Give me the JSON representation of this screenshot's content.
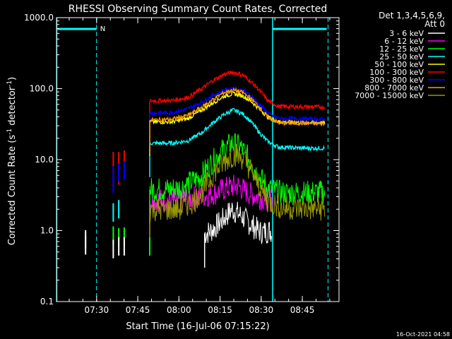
{
  "chart_data": {
    "type": "line",
    "title": "RHESSI Observing Summary Count Rates, Corrected",
    "xlabel": "Start Time (16-Jul-06 07:15:22)",
    "ylabel_main": "Corrected Count Rate (s",
    "ylabel_sup1": "-1",
    "ylabel_mid": " detector",
    "ylabel_sup2": "-1",
    "ylabel_end": ")",
    "yscale": "log",
    "ylim": [
      0.1,
      1000
    ],
    "xlim_minutes": [
      0,
      103
    ],
    "x_ticks": [
      {
        "label": "07:30",
        "t": 14.63
      },
      {
        "label": "07:45",
        "t": 29.63
      },
      {
        "label": "08:00",
        "t": 44.63
      },
      {
        "label": "08:15",
        "t": 59.63
      },
      {
        "label": "08:30",
        "t": 74.63
      },
      {
        "label": "08:45",
        "t": 89.63
      }
    ],
    "y_ticks": [
      {
        "label": "0.1",
        "v": 0.1
      },
      {
        "label": "1.0",
        "v": 1
      },
      {
        "label": "10.0",
        "v": 10
      },
      {
        "label": "100.0",
        "v": 100
      },
      {
        "label": "1000.0",
        "v": 1000
      }
    ],
    "legend_header": [
      "Det 1,3,4,5,6,9,",
      "Att 0"
    ],
    "footer_timestamp": "16-Oct-2021 04:58",
    "night_marker": "N",
    "markers": {
      "color": "#00ffff",
      "dashed_t": [
        14.6,
        99.0
      ],
      "solid_t": [
        0.1,
        78.8
      ],
      "night_bars": [
        [
          0.4,
          14.6
        ],
        [
          78.8,
          98.5
        ]
      ]
    },
    "series": [
      {
        "name": "3 - 6 keV",
        "color": "#ffffff",
        "points": [
          [
            54.0,
            0.9
          ],
          [
            56.5,
            1.0
          ],
          [
            60.5,
            1.4
          ],
          [
            64.0,
            2.0
          ],
          [
            67.5,
            1.6
          ],
          [
            71.0,
            1.2
          ],
          [
            74.5,
            0.95
          ],
          [
            78.5,
            1.0
          ]
        ]
      },
      {
        "name": "6 - 12 keV",
        "color": "#ff00ff",
        "points": [
          [
            34.0,
            2.6
          ],
          [
            36.0,
            2.7
          ],
          [
            45.0,
            2.7
          ],
          [
            52.0,
            3.0
          ],
          [
            58.0,
            3.4
          ],
          [
            63.0,
            4.1
          ],
          [
            66.0,
            4.3
          ],
          [
            70.0,
            3.4
          ],
          [
            74.0,
            2.9
          ],
          [
            79.0,
            2.7
          ]
        ]
      },
      {
        "name": "12 - 25 keV",
        "color": "#00ff00",
        "points": [
          [
            34.0,
            3.8
          ],
          [
            40.0,
            3.8
          ],
          [
            45.0,
            4.0
          ],
          [
            52.0,
            5.5
          ],
          [
            56.0,
            8.5
          ],
          [
            60.0,
            13.0
          ],
          [
            64.0,
            17.0
          ],
          [
            67.0,
            15.0
          ],
          [
            70.0,
            10.5
          ],
          [
            73.0,
            6.5
          ],
          [
            77.0,
            4.0
          ],
          [
            82.0,
            3.4
          ],
          [
            90.0,
            3.4
          ],
          [
            98.0,
            3.5
          ]
        ]
      },
      {
        "name": "25 - 50 keV",
        "color": "#00ffff",
        "points": [
          [
            34.0,
            17.0
          ],
          [
            42.0,
            17.0
          ],
          [
            48.0,
            18.5
          ],
          [
            53.0,
            24.0
          ],
          [
            57.0,
            33.0
          ],
          [
            61.0,
            43.0
          ],
          [
            64.5,
            50.0
          ],
          [
            68.0,
            44.0
          ],
          [
            71.0,
            34.0
          ],
          [
            74.0,
            24.0
          ],
          [
            77.0,
            18.0
          ],
          [
            81.0,
            15.0
          ],
          [
            90.0,
            14.5
          ],
          [
            98.0,
            14.5
          ]
        ]
      },
      {
        "name": "50 - 100 keV",
        "color": "#ffff00",
        "points": [
          [
            34.0,
            34.0
          ],
          [
            42.0,
            34.0
          ],
          [
            48.0,
            38.0
          ],
          [
            53.0,
            50.0
          ],
          [
            57.0,
            63.0
          ],
          [
            61.0,
            78.0
          ],
          [
            64.5,
            85.0
          ],
          [
            68.0,
            79.0
          ],
          [
            71.0,
            66.0
          ],
          [
            74.0,
            52.0
          ],
          [
            77.0,
            40.0
          ],
          [
            81.0,
            34.0
          ],
          [
            98.0,
            33.0
          ]
        ]
      },
      {
        "name": "100 - 300 keV",
        "color": "#ff0000",
        "points": [
          [
            34.0,
            67.0
          ],
          [
            42.0,
            68.0
          ],
          [
            48.0,
            75.0
          ],
          [
            53.0,
            100.0
          ],
          [
            57.0,
            130.0
          ],
          [
            61.0,
            158.0
          ],
          [
            64.5,
            170.0
          ],
          [
            68.0,
            155.0
          ],
          [
            71.0,
            125.0
          ],
          [
            74.0,
            95.0
          ],
          [
            77.0,
            68.0
          ],
          [
            81.0,
            56.0
          ],
          [
            98.0,
            55.0
          ]
        ]
      },
      {
        "name": "300 - 800 keV",
        "color": "#0000ff",
        "points": [
          [
            34.0,
            45.0
          ],
          [
            42.0,
            46.0
          ],
          [
            48.0,
            52.0
          ],
          [
            53.0,
            65.0
          ],
          [
            57.0,
            80.0
          ],
          [
            61.0,
            95.0
          ],
          [
            64.5,
            100.0
          ],
          [
            68.0,
            94.0
          ],
          [
            71.0,
            78.0
          ],
          [
            74.0,
            60.0
          ],
          [
            77.0,
            45.0
          ],
          [
            81.0,
            38.0
          ],
          [
            98.0,
            37.0
          ]
        ]
      },
      {
        "name": "800 - 7000 keV",
        "color": "#ff9900",
        "points": [
          [
            34.0,
            36.0
          ],
          [
            42.0,
            37.0
          ],
          [
            48.0,
            42.0
          ],
          [
            53.0,
            55.0
          ],
          [
            57.0,
            70.0
          ],
          [
            61.0,
            88.0
          ],
          [
            64.5,
            95.0
          ],
          [
            68.0,
            88.0
          ],
          [
            71.0,
            72.0
          ],
          [
            74.0,
            55.0
          ],
          [
            77.0,
            40.0
          ],
          [
            81.0,
            33.0
          ],
          [
            98.0,
            32.0
          ]
        ]
      },
      {
        "name": "7000 - 15000 keV",
        "color": "#999900",
        "points": [
          [
            34.0,
            2.0
          ],
          [
            40.0,
            2.0
          ],
          [
            45.0,
            2.0
          ],
          [
            50.0,
            2.6
          ],
          [
            54.0,
            4.0
          ],
          [
            58.0,
            7.0
          ],
          [
            62.0,
            10.0
          ],
          [
            65.0,
            12.0
          ],
          [
            68.0,
            10.5
          ],
          [
            71.0,
            7.0
          ],
          [
            74.0,
            4.2
          ],
          [
            77.0,
            2.6
          ],
          [
            82.0,
            2.1
          ],
          [
            98.0,
            2.0
          ]
        ]
      }
    ],
    "isolated_spikes": [
      {
        "t": 10.6,
        "values": [
          0.62,
          0.75
        ],
        "color": "#000000"
      },
      {
        "t": 20.7,
        "values": [
          9.5,
          5.5
        ],
        "color": "#ff0000"
      },
      {
        "t": 22.7,
        "values": [
          9.5,
          6.0
        ],
        "color": "#ff0000"
      },
      {
        "t": 24.7,
        "values": [
          10.0
        ],
        "color": "#ff0000"
      },
      {
        "t": 20.7,
        "values": [
          6.0,
          4.5
        ],
        "color": "#0000ff"
      },
      {
        "t": 22.7,
        "values": [
          6.5
        ],
        "color": "#0000ff"
      },
      {
        "t": 24.7,
        "values": [
          7.0
        ],
        "color": "#0000ff"
      },
      {
        "t": 20.7,
        "values": [
          1.8
        ],
        "color": "#00ffff"
      },
      {
        "t": 22.7,
        "values": [
          2.0
        ],
        "color": "#00ffff"
      },
      {
        "t": 20.7,
        "values": [
          0.85
        ],
        "color": "#00ff00"
      },
      {
        "t": 22.7,
        "values": [
          0.8
        ],
        "color": "#00ff00"
      },
      {
        "t": 24.7,
        "values": [
          0.82
        ],
        "color": "#00ff00"
      },
      {
        "t": 20.7,
        "values": [
          0.55
        ],
        "color": "#ffffff"
      },
      {
        "t": 22.7,
        "values": [
          0.6
        ],
        "color": "#ffffff"
      },
      {
        "t": 24.7,
        "values": [
          0.6
        ],
        "color": "#ffffff"
      },
      {
        "t": 34.0,
        "values": [
          0.6
        ],
        "color": "#00ff00"
      }
    ]
  }
}
